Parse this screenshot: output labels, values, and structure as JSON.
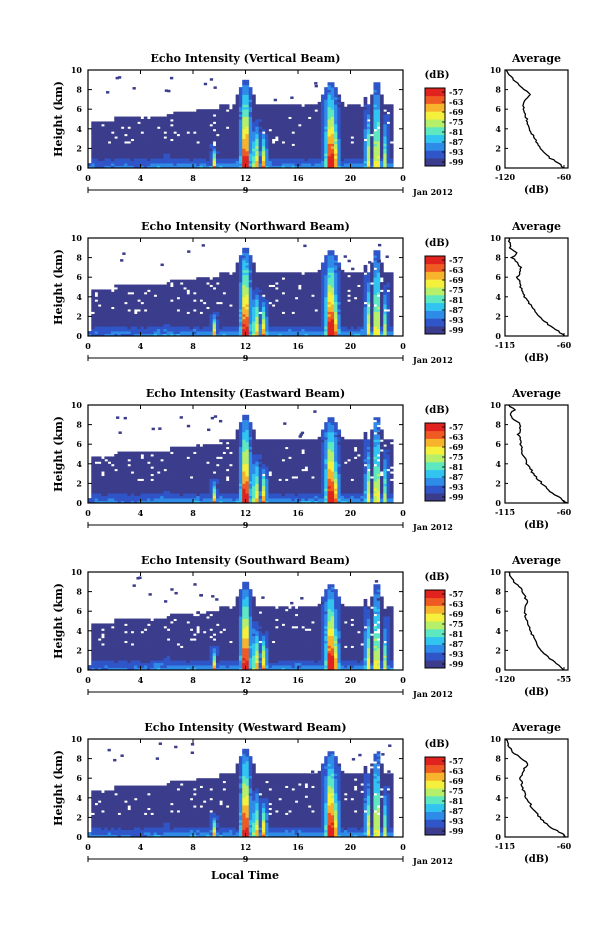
{
  "figure": {
    "x_axis_label": "Local Time",
    "date_label": "Jan 2012",
    "day_label": "9",
    "y_axis_label": "Height (km)",
    "colorbar_unit": "(dB)",
    "colorbar_ticks": [
      "-57",
      "-63",
      "-69",
      "-75",
      "-81",
      "-87",
      "-93",
      "-99"
    ],
    "colormap": [
      "#3b3d8c",
      "#2f55c8",
      "#2f8be8",
      "#31c4f0",
      "#5ee8c0",
      "#b6f06a",
      "#f5f03c",
      "#f7b32b",
      "#ef5a22",
      "#e0231e"
    ],
    "background_color": "#3b3d8c",
    "average_title": "Average",
    "average_xlabel": "(dB)"
  },
  "chart_data": [
    {
      "type": "heatmap",
      "title": "Echo Intensity (Vertical Beam)",
      "ylabel": "Height (km)",
      "x_ticks": [
        "0",
        "4",
        "8",
        "12",
        "16",
        "20",
        "0"
      ],
      "y_ticks": [
        "0",
        "2",
        "4",
        "6",
        "8",
        "10"
      ],
      "xlim": [
        0,
        24
      ],
      "ylim": [
        0,
        10
      ],
      "zlim": [
        -99,
        -57
      ],
      "convective_events_local_time": [
        12,
        18.5,
        22
      ],
      "profile": {
        "title": "Average",
        "x_ticks": [
          "-120",
          "-60"
        ],
        "xlim": [
          -120,
          -50
        ],
        "ylim": [
          0,
          10
        ],
        "heights": [
          0,
          0.5,
          1,
          2,
          3,
          4,
          5,
          6,
          7,
          7.5,
          8,
          8.5,
          9,
          9.5,
          10
        ],
        "values": [
          -55,
          -60,
          -70,
          -80,
          -87,
          -93,
          -96,
          -100,
          -98,
          -92,
          -98,
          -104,
          -110,
          -115,
          -118
        ]
      }
    },
    {
      "type": "heatmap",
      "title": "Echo Intensity (Northward Beam)",
      "ylabel": "Height (km)",
      "x_ticks": [
        "0",
        "4",
        "8",
        "12",
        "16",
        "20",
        "0"
      ],
      "y_ticks": [
        "0",
        "2",
        "4",
        "6",
        "8",
        "10"
      ],
      "xlim": [
        0,
        24
      ],
      "ylim": [
        0,
        10
      ],
      "zlim": [
        -99,
        -57
      ],
      "convective_events_local_time": [
        12,
        18.5,
        22
      ],
      "profile": {
        "title": "Average",
        "x_ticks": [
          "-115",
          "-60"
        ],
        "xlim": [
          -115,
          -55
        ],
        "ylim": [
          0,
          10
        ],
        "heights": [
          0,
          0.5,
          1,
          2,
          3,
          4,
          5,
          6,
          7,
          8,
          8.5,
          9,
          10
        ],
        "values": [
          -58,
          -64,
          -72,
          -82,
          -90,
          -96,
          -100,
          -103,
          -100,
          -108,
          -104,
          -110,
          -112
        ]
      }
    },
    {
      "type": "heatmap",
      "title": "Echo Intensity (Eastward Beam)",
      "ylabel": "Height (km)",
      "x_ticks": [
        "0",
        "4",
        "8",
        "12",
        "16",
        "20",
        "0"
      ],
      "y_ticks": [
        "0",
        "2",
        "4",
        "6",
        "8",
        "10"
      ],
      "xlim": [
        0,
        24
      ],
      "ylim": [
        0,
        10
      ],
      "zlim": [
        -99,
        -57
      ],
      "convective_events_local_time": [
        12,
        18.5,
        22
      ],
      "profile": {
        "title": "Average",
        "x_ticks": [
          "-115",
          "-60"
        ],
        "xlim": [
          -115,
          -55
        ],
        "ylim": [
          0,
          10
        ],
        "heights": [
          0,
          0.5,
          1,
          2,
          3,
          4,
          5,
          6,
          7,
          8,
          8.5,
          9,
          9.5,
          10
        ],
        "values": [
          -56,
          -62,
          -70,
          -80,
          -88,
          -94,
          -98,
          -100,
          -102,
          -100,
          -106,
          -110,
          -106,
          -112
        ]
      }
    },
    {
      "type": "heatmap",
      "title": "Echo Intensity (Southward Beam)",
      "ylabel": "Height (km)",
      "x_ticks": [
        "0",
        "4",
        "8",
        "12",
        "16",
        "20",
        "0"
      ],
      "y_ticks": [
        "0",
        "2",
        "4",
        "6",
        "8",
        "10"
      ],
      "xlim": [
        0,
        24
      ],
      "ylim": [
        0,
        10
      ],
      "zlim": [
        -99,
        -57
      ],
      "convective_events_local_time": [
        12,
        18.5,
        22
      ],
      "profile": {
        "title": "Average",
        "x_ticks": [
          "-120",
          "-55"
        ],
        "xlim": [
          -120,
          -50
        ],
        "ylim": [
          0,
          10
        ],
        "heights": [
          0,
          0.5,
          1,
          2,
          3,
          4,
          5,
          6,
          7,
          8,
          8.5,
          9,
          9.5,
          10
        ],
        "values": [
          -54,
          -60,
          -68,
          -80,
          -86,
          -92,
          -96,
          -98,
          -96,
          -100,
          -104,
          -110,
          -114,
          -116
        ]
      }
    },
    {
      "type": "heatmap",
      "title": "Echo Intensity (Westward Beam)",
      "ylabel": "Height (km)",
      "x_ticks": [
        "0",
        "4",
        "8",
        "12",
        "16",
        "20",
        "0"
      ],
      "y_ticks": [
        "0",
        "2",
        "4",
        "6",
        "8",
        "10"
      ],
      "xlim": [
        0,
        24
      ],
      "ylim": [
        0,
        10
      ],
      "zlim": [
        -99,
        -57
      ],
      "convective_events_local_time": [
        12,
        18.5,
        22
      ],
      "profile": {
        "title": "Average",
        "x_ticks": [
          "-115",
          "-60"
        ],
        "xlim": [
          -115,
          -55
        ],
        "ylim": [
          0,
          10
        ],
        "heights": [
          0,
          0.5,
          1,
          2,
          3,
          4,
          5,
          6,
          7,
          7.5,
          8,
          8.5,
          9,
          9.5,
          10
        ],
        "values": [
          -57,
          -63,
          -72,
          -82,
          -89,
          -95,
          -98,
          -100,
          -97,
          -93,
          -99,
          -106,
          -110,
          -112,
          -114
        ]
      }
    }
  ]
}
